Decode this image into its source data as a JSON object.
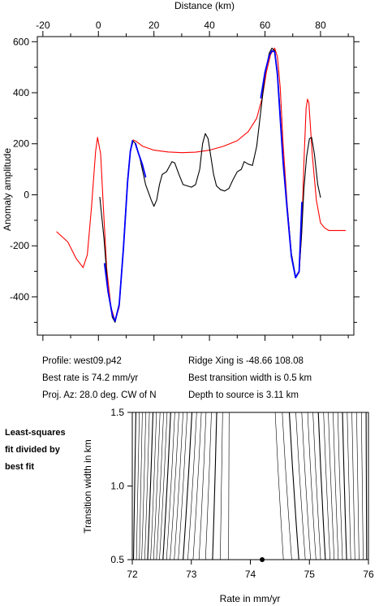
{
  "chart_data": [
    {
      "type": "line",
      "title": "",
      "xlabel": "Distance (km)",
      "ylabel": "Anomaly amplitude",
      "xlim": [
        -22,
        92
      ],
      "ylim": [
        -550,
        620
      ],
      "x_ticks": [
        -20,
        0,
        20,
        40,
        60,
        80
      ],
      "y_ticks": [
        -400,
        -200,
        0,
        200,
        400,
        600
      ],
      "x_axis_position": "top",
      "grid": false,
      "series": [
        {
          "color": "#ff0000",
          "style": "solid",
          "points": [
            [
              -15,
              -145
            ],
            [
              -11,
              -185
            ],
            [
              -8,
              -250
            ],
            [
              -5.5,
              -285
            ],
            [
              -4,
              -235
            ],
            [
              -2.5,
              -50
            ],
            [
              -1,
              170
            ],
            [
              -0.3,
              225
            ],
            [
              0.8,
              160
            ],
            [
              1.8,
              -50
            ],
            [
              3,
              -290
            ],
            [
              4.5,
              -440
            ],
            [
              6,
              -495
            ],
            [
              7.5,
              -440
            ],
            [
              9,
              -210
            ],
            [
              10.5,
              50
            ],
            [
              11.5,
              175
            ],
            [
              12.5,
              215
            ],
            [
              13.5,
              210
            ],
            [
              16,
              190
            ],
            [
              20,
              175
            ],
            [
              25,
              168
            ],
            [
              30,
              165
            ],
            [
              35,
              167
            ],
            [
              40,
              175
            ],
            [
              45,
              190
            ],
            [
              50,
              212
            ],
            [
              54,
              248
            ],
            [
              57,
              300
            ],
            [
              59,
              380
            ],
            [
              60.5,
              480
            ],
            [
              62,
              550
            ],
            [
              63.5,
              575
            ],
            [
              64.5,
              540
            ],
            [
              65.5,
              420
            ],
            [
              66.5,
              200
            ],
            [
              68,
              -40
            ],
            [
              69.5,
              -230
            ],
            [
              71,
              -325
            ],
            [
              72.3,
              -305
            ],
            [
              73.2,
              -150
            ],
            [
              74,
              120
            ],
            [
              74.8,
              340
            ],
            [
              75.3,
              375
            ],
            [
              75.8,
              360
            ],
            [
              77,
              160
            ],
            [
              78.5,
              -20
            ],
            [
              80,
              -110
            ],
            [
              81.5,
              -130
            ],
            [
              83,
              -140
            ],
            [
              89,
              -140
            ]
          ]
        },
        {
          "color": "#000000",
          "style": "solid",
          "points": [
            [
              0.5,
              -10
            ],
            [
              2,
              -170
            ],
            [
              3.5,
              -380
            ],
            [
              5,
              -480
            ],
            [
              6,
              -500
            ],
            [
              7.5,
              -430
            ],
            [
              9,
              -200
            ],
            [
              10.5,
              60
            ],
            [
              11.5,
              170
            ],
            [
              12.5,
              210
            ],
            [
              13.5,
              200
            ],
            [
              15,
              140
            ],
            [
              17,
              40
            ],
            [
              19,
              -20
            ],
            [
              20,
              -45
            ],
            [
              21,
              -20
            ],
            [
              22,
              40
            ],
            [
              23,
              80
            ],
            [
              24.5,
              90
            ],
            [
              25.5,
              110
            ],
            [
              26.5,
              130
            ],
            [
              27.5,
              125
            ],
            [
              29,
              80
            ],
            [
              30.5,
              40
            ],
            [
              32,
              35
            ],
            [
              33.5,
              30
            ],
            [
              35,
              40
            ],
            [
              36.5,
              100
            ],
            [
              37.5,
              200
            ],
            [
              38.5,
              240
            ],
            [
              39.5,
              220
            ],
            [
              40.5,
              150
            ],
            [
              41.5,
              80
            ],
            [
              42.5,
              35
            ],
            [
              44,
              20
            ],
            [
              45.5,
              15
            ],
            [
              47,
              25
            ],
            [
              48.5,
              60
            ],
            [
              50,
              90
            ],
            [
              51.5,
              100
            ],
            [
              52.5,
              130
            ],
            [
              54,
              120
            ],
            [
              55.5,
              115
            ],
            [
              57,
              190
            ],
            [
              58.5,
              330
            ],
            [
              60,
              470
            ],
            [
              61.5,
              555
            ],
            [
              62.5,
              575
            ],
            [
              63.5,
              565
            ],
            [
              64.5,
              480
            ],
            [
              65.5,
              320
            ],
            [
              66.5,
              140
            ],
            [
              68,
              -50
            ],
            [
              69.5,
              -230
            ],
            [
              71,
              -320
            ],
            [
              72.3,
              -300
            ],
            [
              73.2,
              -150
            ],
            [
              74,
              20
            ],
            [
              75,
              150
            ],
            [
              76,
              220
            ],
            [
              76.8,
              225
            ],
            [
              77.8,
              160
            ],
            [
              79,
              40
            ],
            [
              80,
              -10
            ]
          ]
        },
        {
          "color": "#0000ff",
          "style": "solid",
          "points": [
            [
              2.2,
              -270
            ],
            [
              3.5,
              -380
            ],
            [
              5,
              -470
            ],
            [
              6,
              -495
            ],
            [
              7.5,
              -430
            ],
            [
              9,
              -210
            ],
            [
              10.5,
              50
            ],
            [
              11.5,
              170
            ],
            [
              12.3,
              212
            ]
          ]
        },
        {
          "color": "#0000ff",
          "style": "solid",
          "points": [
            [
              13.3,
              200
            ],
            [
              14.5,
              160
            ],
            [
              15.8,
              120
            ],
            [
              17,
              70
            ]
          ]
        },
        {
          "color": "#0000ff",
          "style": "solid",
          "points": [
            [
              58.5,
              380
            ],
            [
              60,
              480
            ],
            [
              61.5,
              545
            ],
            [
              62.5,
              565
            ],
            [
              63.5,
              560
            ],
            [
              64.5,
              470
            ],
            [
              65.5,
              300
            ],
            [
              66.5,
              130
            ],
            [
              68,
              -60
            ],
            [
              69.5,
              -240
            ],
            [
              71,
              -325
            ],
            [
              72.3,
              -300
            ],
            [
              73.3,
              -30
            ]
          ]
        }
      ]
    },
    {
      "type": "contour",
      "title": "",
      "xlabel": "Rate in mm/yr",
      "ylabel": "Transition width in km",
      "xlim": [
        72,
        76
      ],
      "ylim": [
        0.5,
        1.5
      ],
      "x_ticks": [
        72,
        73,
        74,
        75,
        76
      ],
      "y_ticks": [
        0.5,
        1.0,
        1.5
      ],
      "x_tick_labels": [
        "72",
        "73",
        "74",
        "75",
        "76"
      ],
      "y_tick_labels": [
        "0.5",
        "1.0",
        "1.5"
      ],
      "best_fit_point": {
        "x": 74.2,
        "y": 0.5
      },
      "contours": [
        {
          "x_bottom": 72.02,
          "x_top": 72.06
        },
        {
          "x_bottom": 72.07,
          "x_top": 72.12
        },
        {
          "x_bottom": 72.12,
          "x_top": 72.17
        },
        {
          "x_bottom": 72.16,
          "x_top": 72.23
        },
        {
          "x_bottom": 72.21,
          "x_top": 72.29
        },
        {
          "x_bottom": 72.26,
          "x_top": 72.35
        },
        {
          "x_bottom": 72.31,
          "x_top": 72.41
        },
        {
          "x_bottom": 72.36,
          "x_top": 72.47
        },
        {
          "x_bottom": 72.41,
          "x_top": 72.53
        },
        {
          "x_bottom": 72.46,
          "x_top": 72.59
        },
        {
          "x_bottom": 72.52,
          "x_top": 72.65
        },
        {
          "x_bottom": 72.58,
          "x_top": 72.72
        },
        {
          "x_bottom": 72.64,
          "x_top": 72.79
        },
        {
          "x_bottom": 72.71,
          "x_top": 72.86
        },
        {
          "x_bottom": 72.78,
          "x_top": 72.93
        },
        {
          "x_bottom": 72.86,
          "x_top": 73.01
        },
        {
          "x_bottom": 72.94,
          "x_top": 73.09
        },
        {
          "x_bottom": 73.03,
          "x_top": 73.17
        },
        {
          "x_bottom": 73.13,
          "x_top": 73.25
        },
        {
          "x_bottom": 73.24,
          "x_top": 73.34
        },
        {
          "x_bottom": 73.36,
          "x_top": 73.43
        },
        {
          "x_bottom": 73.49,
          "x_top": 73.53
        },
        {
          "x_bottom": 73.63,
          "x_top": 73.64
        },
        {
          "x_bottom": 74.56,
          "x_top": 74.42
        },
        {
          "x_bottom": 74.7,
          "x_top": 74.54
        },
        {
          "x_bottom": 74.82,
          "x_top": 74.66
        },
        {
          "x_bottom": 74.93,
          "x_top": 74.77
        },
        {
          "x_bottom": 75.02,
          "x_top": 74.87
        },
        {
          "x_bottom": 75.11,
          "x_top": 74.97
        },
        {
          "x_bottom": 75.19,
          "x_top": 75.06
        },
        {
          "x_bottom": 75.27,
          "x_top": 75.15
        },
        {
          "x_bottom": 75.35,
          "x_top": 75.24
        },
        {
          "x_bottom": 75.42,
          "x_top": 75.32
        },
        {
          "x_bottom": 75.49,
          "x_top": 75.4
        },
        {
          "x_bottom": 75.56,
          "x_top": 75.48
        },
        {
          "x_bottom": 75.63,
          "x_top": 75.56
        },
        {
          "x_bottom": 75.7,
          "x_top": 75.64
        },
        {
          "x_bottom": 75.77,
          "x_top": 75.72
        },
        {
          "x_bottom": 75.84,
          "x_top": 75.8
        },
        {
          "x_bottom": 75.91,
          "x_top": 75.88
        },
        {
          "x_bottom": 75.97,
          "x_top": 75.96
        }
      ]
    }
  ],
  "info": {
    "profile": "Profile: west09.p42",
    "best_rate": "Best rate is 74.2 mm/yr",
    "proj_az": "Proj. Az: 28.0 deg. CW of N",
    "ridge_xing": "Ridge Xing is -48.66 108.08",
    "best_width": "Best transition width is 0.5 km",
    "depth": "Depth to source is   3.11 km"
  },
  "side_note": [
    "Least-squares",
    "fit divided by",
    "best fit"
  ]
}
